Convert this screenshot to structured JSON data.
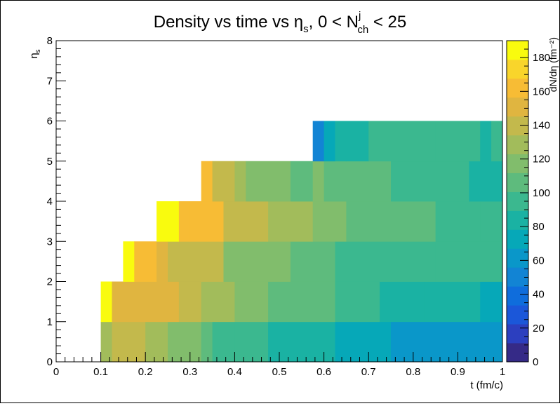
{
  "chart_data": {
    "type": "heatmap",
    "title": {
      "prefix": "Density vs time vs η",
      "prefix_sub": "s",
      "middle": ", 0 < N",
      "sup": "j",
      "sub": "ch",
      "suffix": " < 25"
    },
    "xlabel": "t (fm/c)",
    "ylabel": {
      "main": "η",
      "sub": "s"
    },
    "zlabel": "dN/dη (fm⁻²)",
    "xlim": [
      0,
      1
    ],
    "ylim": [
      0,
      8
    ],
    "zlim": [
      0,
      190
    ],
    "x_ticks": [
      "0",
      "0.1",
      "0.2",
      "0.3",
      "0.4",
      "0.5",
      "0.6",
      "0.7",
      "0.8",
      "0.9",
      "1"
    ],
    "y_ticks": [
      "0",
      "1",
      "2",
      "3",
      "4",
      "5",
      "6",
      "7",
      "8"
    ],
    "z_ticks": [
      "0",
      "20",
      "40",
      "60",
      "80",
      "100",
      "120",
      "140",
      "160",
      "180"
    ],
    "palette": [
      "#352a87",
      "#2c3fbf",
      "#1b57d9",
      "#0f6ddc",
      "#1284d4",
      "#0a97c9",
      "#06a8b8",
      "#1ab2a3",
      "#3bb88f",
      "#5ebb7d",
      "#81bd6c",
      "#a2bc5b",
      "#c3b94c",
      "#e0b540",
      "#f7bc35",
      "#f9d52b",
      "#f9fb0e"
    ],
    "rows": [
      {
        "y0": 0,
        "y1": 1,
        "cells": [
          {
            "x0": 0.1,
            "x1": 0.125,
            "z": 130
          },
          {
            "x0": 0.125,
            "x1": 0.15,
            "z": 135
          },
          {
            "x0": 0.15,
            "x1": 0.2,
            "z": 138
          },
          {
            "x0": 0.2,
            "x1": 0.25,
            "z": 125
          },
          {
            "x0": 0.25,
            "x1": 0.325,
            "z": 115
          },
          {
            "x0": 0.325,
            "x1": 0.35,
            "z": 108
          },
          {
            "x0": 0.35,
            "x1": 0.4,
            "z": 98
          },
          {
            "x0": 0.4,
            "x1": 0.475,
            "z": 92
          },
          {
            "x0": 0.475,
            "x1": 0.55,
            "z": 88
          },
          {
            "x0": 0.55,
            "x1": 0.625,
            "z": 80
          },
          {
            "x0": 0.625,
            "x1": 0.75,
            "z": 72
          },
          {
            "x0": 0.75,
            "x1": 0.85,
            "z": 65
          },
          {
            "x0": 0.85,
            "x1": 0.95,
            "z": 60
          },
          {
            "x0": 0.95,
            "x1": 1.0,
            "z": 62
          }
        ]
      },
      {
        "y0": 1,
        "y1": 2,
        "cells": [
          {
            "x0": 0.1,
            "x1": 0.125,
            "z": 180
          },
          {
            "x0": 0.125,
            "x1": 0.225,
            "z": 155
          },
          {
            "x0": 0.225,
            "x1": 0.275,
            "z": 150
          },
          {
            "x0": 0.275,
            "x1": 0.325,
            "z": 145
          },
          {
            "x0": 0.325,
            "x1": 0.4,
            "z": 128
          },
          {
            "x0": 0.4,
            "x1": 0.475,
            "z": 118
          },
          {
            "x0": 0.475,
            "x1": 0.55,
            "z": 110
          },
          {
            "x0": 0.55,
            "x1": 0.625,
            "z": 103
          },
          {
            "x0": 0.625,
            "x1": 0.725,
            "z": 95
          },
          {
            "x0": 0.725,
            "x1": 0.825,
            "z": 88
          },
          {
            "x0": 0.825,
            "x1": 0.95,
            "z": 82
          },
          {
            "x0": 0.95,
            "x1": 1.0,
            "z": 78
          }
        ]
      },
      {
        "y0": 2,
        "y1": 3,
        "cells": [
          {
            "x0": 0.15,
            "x1": 0.175,
            "z": 185
          },
          {
            "x0": 0.175,
            "x1": 0.225,
            "z": 165
          },
          {
            "x0": 0.225,
            "x1": 0.25,
            "z": 150
          },
          {
            "x0": 0.25,
            "x1": 0.3,
            "z": 145
          },
          {
            "x0": 0.3,
            "x1": 0.375,
            "z": 138
          },
          {
            "x0": 0.375,
            "x1": 0.45,
            "z": 122
          },
          {
            "x0": 0.45,
            "x1": 0.525,
            "z": 112
          },
          {
            "x0": 0.525,
            "x1": 0.625,
            "z": 108
          },
          {
            "x0": 0.625,
            "x1": 0.75,
            "z": 100
          },
          {
            "x0": 0.75,
            "x1": 0.85,
            "z": 96
          },
          {
            "x0": 0.85,
            "x1": 1.0,
            "z": 90
          }
        ]
      },
      {
        "y0": 3,
        "y1": 4,
        "cells": [
          {
            "x0": 0.225,
            "x1": 0.275,
            "z": 180
          },
          {
            "x0": 0.275,
            "x1": 0.3,
            "z": 165
          },
          {
            "x0": 0.3,
            "x1": 0.375,
            "z": 158
          },
          {
            "x0": 0.375,
            "x1": 0.475,
            "z": 140
          },
          {
            "x0": 0.475,
            "x1": 0.575,
            "z": 125
          },
          {
            "x0": 0.575,
            "x1": 0.65,
            "z": 115
          },
          {
            "x0": 0.65,
            "x1": 0.75,
            "z": 108
          },
          {
            "x0": 0.75,
            "x1": 0.85,
            "z": 104
          },
          {
            "x0": 0.85,
            "x1": 0.95,
            "z": 98
          },
          {
            "x0": 0.95,
            "x1": 1.0,
            "z": 95
          }
        ]
      },
      {
        "y0": 4,
        "y1": 5,
        "cells": [
          {
            "x0": 0.325,
            "x1": 0.35,
            "z": 165
          },
          {
            "x0": 0.35,
            "x1": 0.4,
            "z": 145
          },
          {
            "x0": 0.4,
            "x1": 0.425,
            "z": 130
          },
          {
            "x0": 0.425,
            "x1": 0.525,
            "z": 118
          },
          {
            "x0": 0.525,
            "x1": 0.575,
            "z": 105
          },
          {
            "x0": 0.575,
            "x1": 0.6,
            "z": 115
          },
          {
            "x0": 0.6,
            "x1": 0.75,
            "z": 110
          },
          {
            "x0": 0.75,
            "x1": 0.8,
            "z": 98
          },
          {
            "x0": 0.8,
            "x1": 0.925,
            "z": 90
          },
          {
            "x0": 0.925,
            "x1": 1.0,
            "z": 82
          }
        ]
      },
      {
        "y0": 5,
        "y1": 6,
        "cells": [
          {
            "x0": 0.575,
            "x1": 0.6,
            "z": 55
          },
          {
            "x0": 0.6,
            "x1": 0.625,
            "z": 70
          },
          {
            "x0": 0.625,
            "x1": 0.65,
            "z": 80
          },
          {
            "x0": 0.65,
            "x1": 0.7,
            "z": 88
          },
          {
            "x0": 0.7,
            "x1": 0.75,
            "z": 100
          },
          {
            "x0": 0.75,
            "x1": 0.85,
            "z": 90
          },
          {
            "x0": 0.85,
            "x1": 0.95,
            "z": 98
          },
          {
            "x0": 0.95,
            "x1": 0.975,
            "z": 88
          },
          {
            "x0": 0.975,
            "x1": 1.0,
            "z": 98
          }
        ]
      }
    ]
  }
}
